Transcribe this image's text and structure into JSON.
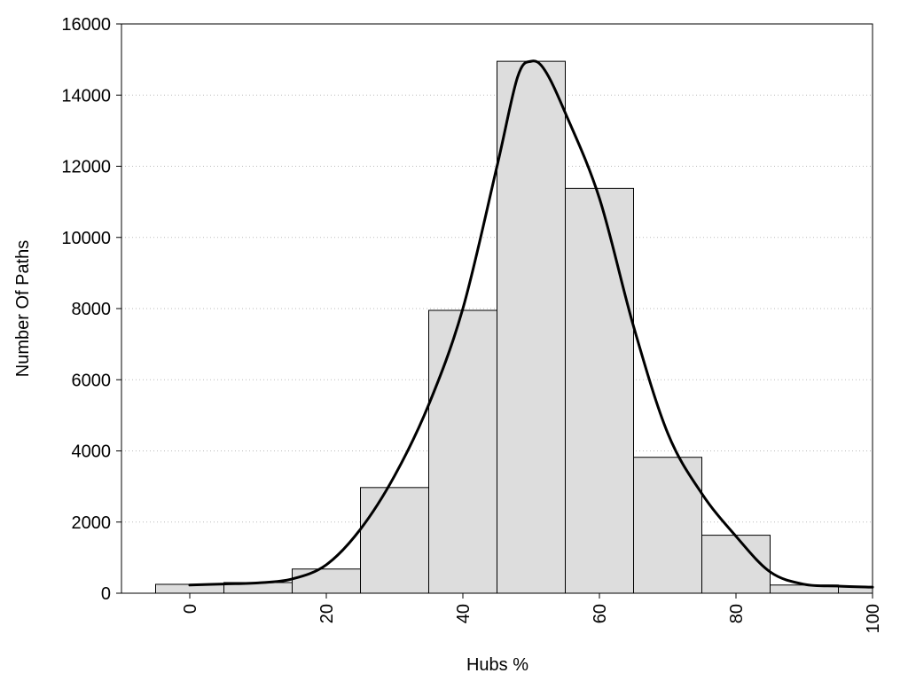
{
  "chart_data": {
    "type": "bar",
    "xlabel": "Hubs %",
    "ylabel": "Number Of Paths",
    "xlim": [
      -10,
      100
    ],
    "ylim": [
      0,
      16000
    ],
    "xticks": [
      0,
      20,
      40,
      60,
      80,
      100
    ],
    "yticks": [
      0,
      2000,
      4000,
      6000,
      8000,
      10000,
      12000,
      14000,
      16000
    ],
    "grid": "horizontal dotted",
    "bins": [
      {
        "from": -5,
        "to": 5,
        "value": 250
      },
      {
        "from": 5,
        "to": 15,
        "value": 300
      },
      {
        "from": 15,
        "to": 25,
        "value": 680
      },
      {
        "from": 25,
        "to": 35,
        "value": 2970
      },
      {
        "from": 35,
        "to": 45,
        "value": 7950
      },
      {
        "from": 45,
        "to": 55,
        "value": 14950
      },
      {
        "from": 55,
        "to": 65,
        "value": 11380
      },
      {
        "from": 65,
        "to": 75,
        "value": 3820
      },
      {
        "from": 75,
        "to": 85,
        "value": 1630
      },
      {
        "from": 85,
        "to": 95,
        "value": 230
      },
      {
        "from": 95,
        "to": 100,
        "value": 180
      }
    ],
    "density_curve": {
      "x": [
        0,
        5,
        10,
        15,
        20,
        25,
        30,
        35,
        40,
        45,
        48,
        50,
        52,
        55,
        60,
        65,
        70,
        75,
        80,
        85,
        90,
        95,
        100
      ],
      "y": [
        230,
        260,
        290,
        400,
        800,
        1800,
        3300,
        5300,
        8000,
        12000,
        14500,
        14950,
        14700,
        13500,
        11100,
        7500,
        4500,
        2800,
        1600,
        600,
        250,
        200,
        170
      ]
    }
  }
}
